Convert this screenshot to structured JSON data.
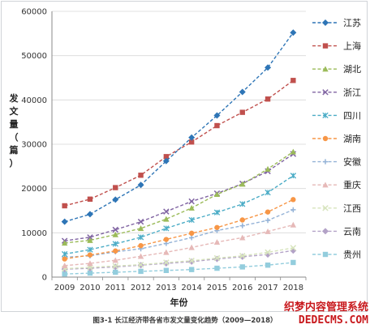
{
  "chart_data": {
    "type": "line",
    "title": "",
    "xlabel": "年份",
    "ylabel": "发文量（篇）",
    "ylim": [
      0,
      60000
    ],
    "yticks": [
      0,
      10000,
      20000,
      30000,
      40000,
      50000,
      60000
    ],
    "x": [
      "2009",
      "2010",
      "2011",
      "2012",
      "2013",
      "2014",
      "2015",
      "2016",
      "2017",
      "2018"
    ],
    "grid": "horizontal",
    "legend_position": "right",
    "series": [
      {
        "name": "江苏",
        "color": "#2e75b6",
        "marker": "diamond",
        "values": [
          12500,
          14200,
          17500,
          20800,
          26200,
          31500,
          36500,
          41800,
          47300,
          55200
        ]
      },
      {
        "name": "上海",
        "color": "#c0504d",
        "marker": "square",
        "values": [
          16100,
          17600,
          20200,
          23000,
          27200,
          30500,
          34200,
          37200,
          40200,
          44400
        ]
      },
      {
        "name": "湖北",
        "color": "#9bbb59",
        "marker": "triangle",
        "values": [
          7700,
          8300,
          9600,
          11000,
          13100,
          15600,
          18700,
          21000,
          24400,
          28300
        ]
      },
      {
        "name": "浙江",
        "color": "#8064a2",
        "marker": "x",
        "values": [
          8200,
          9000,
          10700,
          12500,
          14800,
          17100,
          18900,
          21100,
          23900,
          27800
        ]
      },
      {
        "name": "四川",
        "color": "#4bacc6",
        "marker": "star",
        "values": [
          5200,
          6200,
          7500,
          9000,
          11000,
          12900,
          14600,
          16500,
          19100,
          22900
        ]
      },
      {
        "name": "湖南",
        "color": "#f79646",
        "marker": "circle",
        "values": [
          4100,
          5000,
          5900,
          7100,
          8500,
          9900,
          11200,
          12900,
          14700,
          17500
        ]
      },
      {
        "name": "安徽",
        "color": "#95b3d7",
        "marker": "plus",
        "values": [
          4500,
          4800,
          5700,
          6400,
          7600,
          8900,
          10500,
          11600,
          12800,
          15200
        ]
      },
      {
        "name": "重庆",
        "color": "#e6b9b8",
        "marker": "triangle",
        "values": [
          2600,
          3100,
          3800,
          4700,
          5600,
          6700,
          7900,
          8900,
          10300,
          11800
        ]
      },
      {
        "name": "江西",
        "color": "#d7e4bd",
        "marker": "x",
        "values": [
          1900,
          2200,
          2500,
          2800,
          3300,
          3700,
          4300,
          4800,
          5600,
          6600
        ]
      },
      {
        "name": "云南",
        "color": "#b3a2c7",
        "marker": "diamond",
        "values": [
          1800,
          2000,
          2300,
          2700,
          3100,
          3500,
          4100,
          4600,
          5100,
          6000
        ]
      },
      {
        "name": "贵州",
        "color": "#93cddd",
        "marker": "square",
        "values": [
          700,
          900,
          1100,
          1300,
          1500,
          1700,
          2000,
          2300,
          2700,
          3300
        ]
      }
    ]
  },
  "caption": "图3-1 长江经济带各省市发文量变化趋势（2009—2018）",
  "watermark": {
    "line1": "织梦内容管理系统",
    "line2": "DEDECMS.COM"
  }
}
